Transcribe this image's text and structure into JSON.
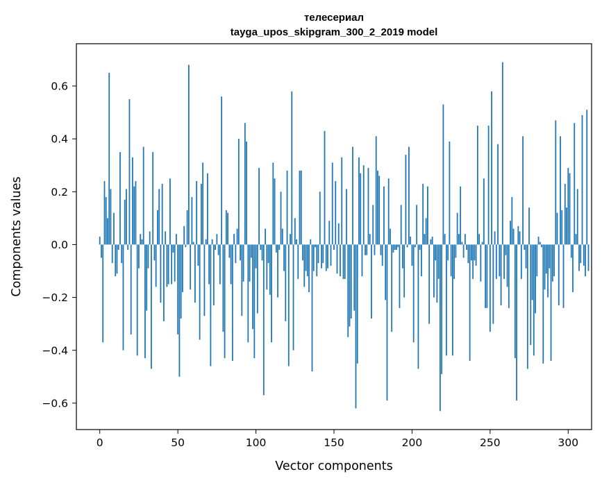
{
  "chart_data": {
    "type": "bar",
    "title_line1": "телесериал",
    "title_line2": "tayga_upos_skipgram_300_2_2019 model",
    "xlabel": "Vector components",
    "ylabel": "Components values",
    "xlim": [
      -15,
      315
    ],
    "ylim": [
      -0.7,
      0.76
    ],
    "x_ticks": [
      0,
      50,
      100,
      150,
      200,
      250,
      300
    ],
    "x_tick_labels": [
      "0",
      "50",
      "100",
      "150",
      "200",
      "250",
      "300"
    ],
    "y_ticks": [
      -0.6,
      -0.4,
      -0.2,
      0.0,
      0.2,
      0.4,
      0.6
    ],
    "y_tick_labels": [
      "−0.6",
      "−0.4",
      "−0.2",
      "0.0",
      "0.2",
      "0.4",
      "0.6"
    ],
    "bar_color": "#1f77b4",
    "values": [
      0.03,
      -0.05,
      -0.37,
      0.24,
      0.18,
      0.1,
      0.65,
      0.21,
      -0.07,
      0.12,
      -0.12,
      -0.11,
      -0.02,
      0.35,
      -0.07,
      -0.4,
      0.17,
      0.21,
      -0.02,
      0.55,
      -0.34,
      0.33,
      0.22,
      0.24,
      -0.42,
      -0.09,
      0.04,
      0.02,
      0.37,
      -0.43,
      -0.25,
      -0.09,
      0.05,
      -0.47,
      0.35,
      -0.06,
      -0.16,
      0.13,
      0.21,
      -0.22,
      0.23,
      -0.29,
      0.05,
      -0.16,
      -0.15,
      0.25,
      -0.15,
      -0.03,
      -0.14,
      0.04,
      -0.34,
      -0.5,
      -0.28,
      -0.18,
      0.07,
      -0.01,
      0.13,
      0.68,
      -0.17,
      0.18,
      0.01,
      -0.22,
      0.24,
      -0.08,
      -0.36,
      0.23,
      0.31,
      -0.27,
      0.02,
      0.27,
      -0.15,
      -0.46,
      0.02,
      -0.23,
      -0.02,
      0.04,
      -0.04,
      -0.15,
      0.56,
      -0.33,
      -0.43,
      0.13,
      0.12,
      -0.05,
      -0.15,
      -0.44,
      0.04,
      -0.07,
      0.06,
      0.4,
      -0.06,
      -0.27,
      -0.14,
      0.46,
      0.39,
      -0.37,
      -0.14,
      -0.05,
      -0.32,
      -0.43,
      -0.09,
      -0.26,
      0.29,
      -0.02,
      -0.06,
      -0.57,
      0.06,
      -0.17,
      -0.07,
      -0.19,
      -0.37,
      0.31,
      0.25,
      -0.03,
      -0.2,
      -0.02,
      0.2,
      0.06,
      -0.1,
      -0.29,
      0.28,
      -0.46,
      0.04,
      0.58,
      -0.4,
      0.1,
      0.02,
      -0.13,
      0.28,
      0.28,
      -0.06,
      -0.16,
      -0.1,
      -0.12,
      -0.18,
      0.02,
      -0.48,
      -0.1,
      -0.01,
      -0.12,
      -0.07,
      0.2,
      -0.09,
      -0.07,
      0.43,
      -0.1,
      -0.09,
      0.09,
      -0.08,
      0.31,
      -0.02,
      0.24,
      -0.11,
      0.08,
      -0.12,
      0.33,
      -0.13,
      -0.13,
      0.21,
      -0.35,
      -0.31,
      -0.28,
      0.37,
      -0.25,
      -0.62,
      -0.45,
      0.33,
      0.27,
      -0.12,
      0.3,
      -0.04,
      -0.04,
      0.29,
      0.04,
      -0.28,
      0.15,
      -0.04,
      0.41,
      0.28,
      0.26,
      -0.04,
      -0.08,
      0.22,
      -0.21,
      -0.59,
      0.25,
      0.06,
      -0.33,
      -0.03,
      -0.02,
      -0.02,
      -0.01,
      -0.24,
      0.15,
      -0.09,
      -0.2,
      0.34,
      -0.01,
      0.37,
      0.03,
      -0.08,
      -0.37,
      -0.01,
      0.15,
      -0.47,
      -0.02,
      -0.12,
      0.23,
      0.04,
      0.1,
      0.22,
      -0.3,
      0.02,
      0.03,
      -0.2,
      -0.06,
      -0.22,
      -0.13,
      -0.63,
      -0.49,
      0.53,
      0.04,
      -0.42,
      -0.06,
      0.39,
      -0.12,
      -0.42,
      -0.13,
      -0.05,
      0.12,
      0.04,
      0.22,
      0.01,
      -0.05,
      0.04,
      -0.02,
      -0.07,
      -0.44,
      -0.06,
      -0.13,
      -0.06,
      -0.08,
      0.45,
      0.04,
      -0.14,
      0.01,
      0.25,
      -0.24,
      -0.24,
      0.45,
      -0.33,
      0.58,
      -0.3,
      0.05,
      -0.13,
      0.38,
      -0.12,
      -0.23,
      0.69,
      -0.13,
      -0.04,
      -0.16,
      -0.24,
      0.09,
      0.18,
      0.06,
      -0.43,
      -0.59,
      0.07,
      0.05,
      -0.13,
      0.41,
      -0.02,
      -0.09,
      -0.47,
      0.14,
      -0.38,
      -0.21,
      -0.42,
      -0.26,
      -0.12,
      0.03,
      0.01,
      -0.01,
      -0.45,
      -0.17,
      -0.11,
      -0.2,
      -0.09,
      -0.44,
      -0.14,
      -0.12,
      0.47,
      0.12,
      -0.23,
      0.41,
      0.13,
      -0.24,
      0.23,
      0.14,
      0.29,
      0.27,
      -0.05,
      -0.18,
      0.46,
      0.04,
      0.21,
      -0.1,
      -0.07,
      0.49,
      -0.08,
      -0.12,
      0.51,
      -0.1
    ]
  }
}
